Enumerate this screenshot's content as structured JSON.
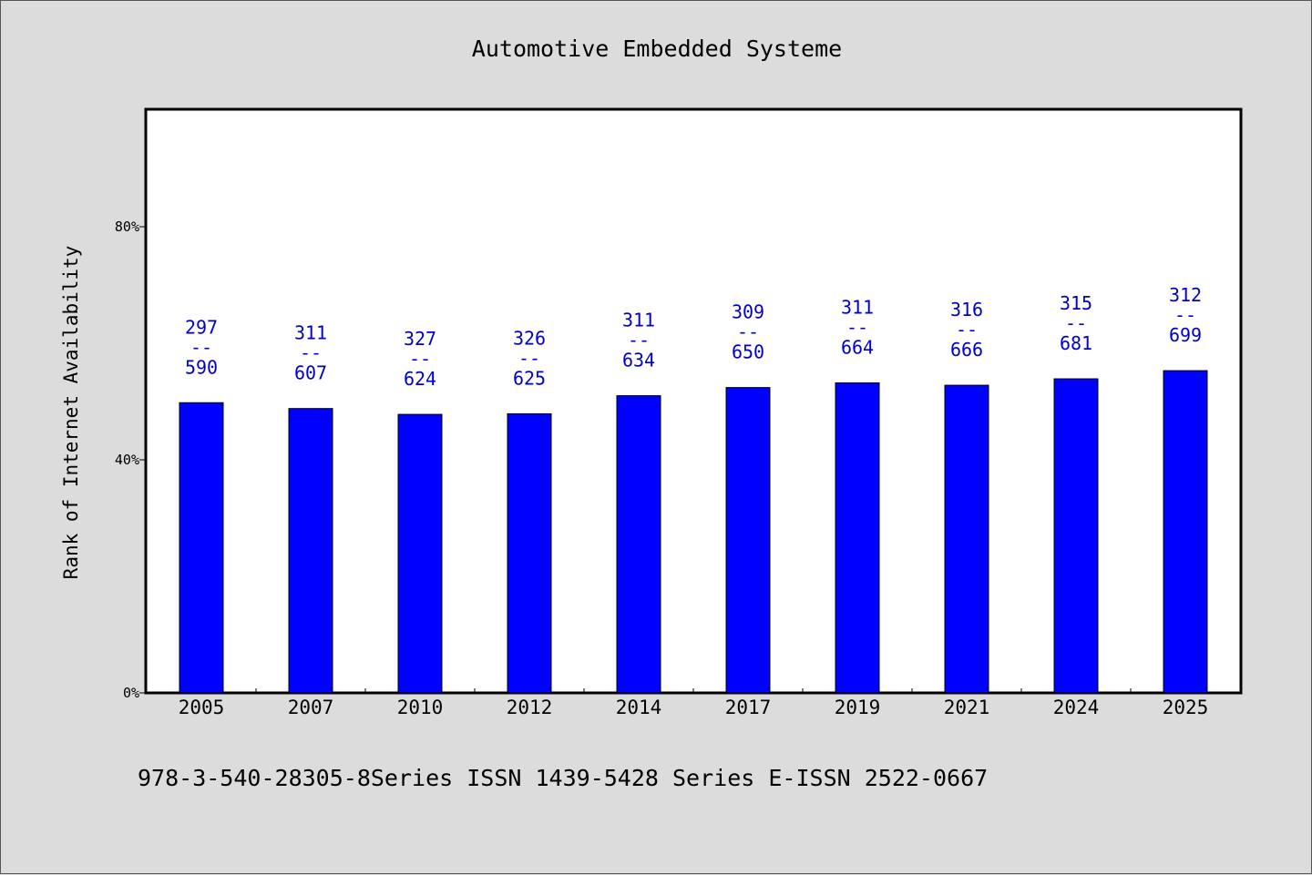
{
  "chart_data": {
    "type": "bar",
    "title": "Automotive Embedded Systeme",
    "ylabel": "Rank of Internet Availability",
    "xlabel": "",
    "categories": [
      "2005",
      "2007",
      "2010",
      "2012",
      "2014",
      "2017",
      "2019",
      "2021",
      "2024",
      "2025"
    ],
    "values": [
      49.8,
      48.8,
      47.8,
      47.9,
      51.0,
      52.4,
      53.2,
      52.8,
      53.9,
      55.3
    ],
    "annotations": [
      [
        "297",
        "--",
        "590"
      ],
      [
        "311",
        "--",
        "607"
      ],
      [
        "327",
        "--",
        "624"
      ],
      [
        "326",
        "--",
        "625"
      ],
      [
        "311",
        "--",
        "634"
      ],
      [
        "309",
        "--",
        "650"
      ],
      [
        "311",
        "--",
        "664"
      ],
      [
        "316",
        "--",
        "666"
      ],
      [
        "315",
        "--",
        "681"
      ],
      [
        "312",
        "--",
        "699"
      ]
    ],
    "ylim": [
      0,
      100
    ],
    "yticks": [
      0,
      40,
      80
    ],
    "ytick_labels": [
      "0%",
      "40%",
      "80%"
    ],
    "bar_color": "#0000ff",
    "label_color": "#0000cc",
    "grid": false,
    "legend": "none"
  },
  "footer": "978-3-540-28305-8Series ISSN 1439-5428 Series E-ISSN 2522-0667"
}
